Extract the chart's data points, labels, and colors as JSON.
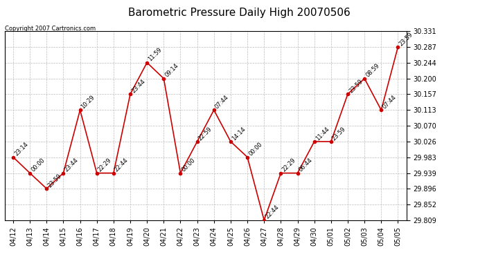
{
  "title": "Barometric Pressure Daily High 20070506",
  "copyright": "Copyright 2007 Cartronics.com",
  "dates": [
    "04/12",
    "04/13",
    "04/14",
    "04/15",
    "04/16",
    "04/17",
    "04/18",
    "04/19",
    "04/20",
    "04/21",
    "04/22",
    "04/23",
    "04/24",
    "04/25",
    "04/26",
    "04/27",
    "04/28",
    "04/29",
    "04/30",
    "05/01",
    "05/02",
    "05/03",
    "05/04",
    "05/05"
  ],
  "values": [
    29.983,
    29.939,
    29.896,
    29.939,
    30.113,
    29.939,
    29.939,
    30.157,
    30.244,
    30.2,
    29.939,
    30.026,
    30.113,
    30.026,
    29.983,
    29.809,
    29.939,
    29.939,
    30.026,
    30.026,
    30.157,
    30.2,
    30.113,
    30.287
  ],
  "labels": [
    "23:14",
    "00:00",
    "23:59",
    "23:44",
    "10:29",
    "22:29",
    "22:44",
    "23:44",
    "11:59",
    "09:14",
    "00:00",
    "22:59",
    "07:44",
    "14:14",
    "00:00",
    "22:44",
    "22:29",
    "06:44",
    "11:44",
    "23:59",
    "23:59",
    "08:59",
    "07:44",
    "23:59"
  ],
  "yticks": [
    29.809,
    29.852,
    29.896,
    29.939,
    29.983,
    30.026,
    30.07,
    30.113,
    30.157,
    30.2,
    30.244,
    30.287,
    30.331
  ],
  "line_color": "#cc0000",
  "marker_color": "#cc0000",
  "bg_color": "#ffffff",
  "grid_color": "#bbbbbb",
  "title_fontsize": 11,
  "label_fontsize": 6,
  "tick_fontsize": 7,
  "ymin": 29.809,
  "ymax": 30.331
}
